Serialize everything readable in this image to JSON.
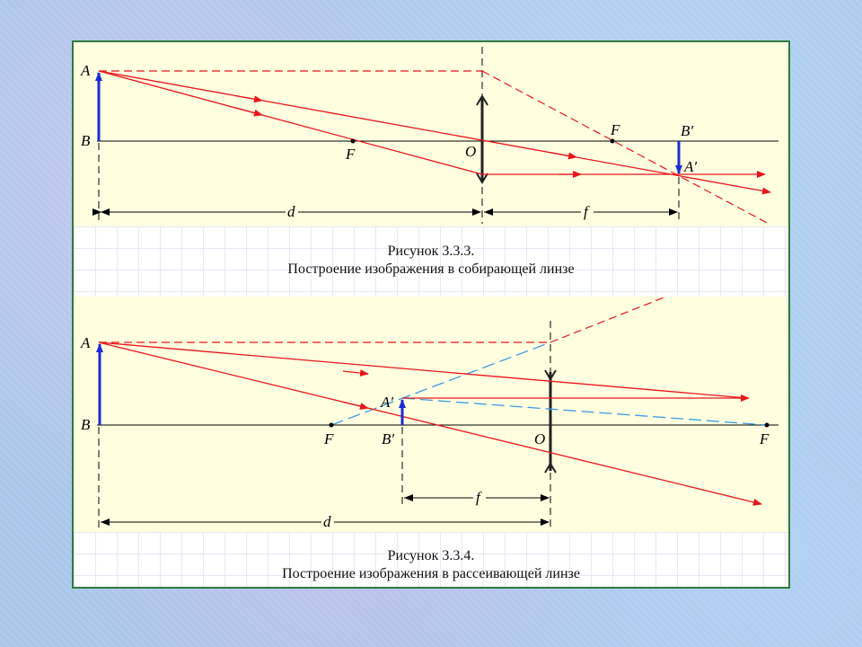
{
  "colors": {
    "background": "#a9c8ea",
    "diagram_fill": "#ffffe0",
    "panel_border": "#2f7a3d",
    "ray_red": "#e8151b",
    "ray_blue_dashed": "#3a9be0",
    "object_arrow": "#1a2bd6",
    "axis_black": "#000000"
  },
  "figure1": {
    "caption_title": "Рисунок 3.3.3.",
    "caption_text": "Построение изображения в собирающей линзе",
    "labels": {
      "A": "A",
      "B": "B",
      "F_left": "F",
      "O": "O",
      "F_right": "F",
      "B_prime": "B′",
      "A_prime": "A′",
      "d": "d",
      "f": "f"
    }
  },
  "figure2": {
    "caption_title": "Рисунок 3.3.4.",
    "caption_text": "Построение изображения в рассеивающей линзе",
    "labels": {
      "A": "A",
      "B": "B",
      "F_left": "F",
      "A_prime": "A′",
      "B_prime": "B′",
      "O": "O",
      "F_right": "F",
      "f": "f",
      "d": "d"
    }
  }
}
